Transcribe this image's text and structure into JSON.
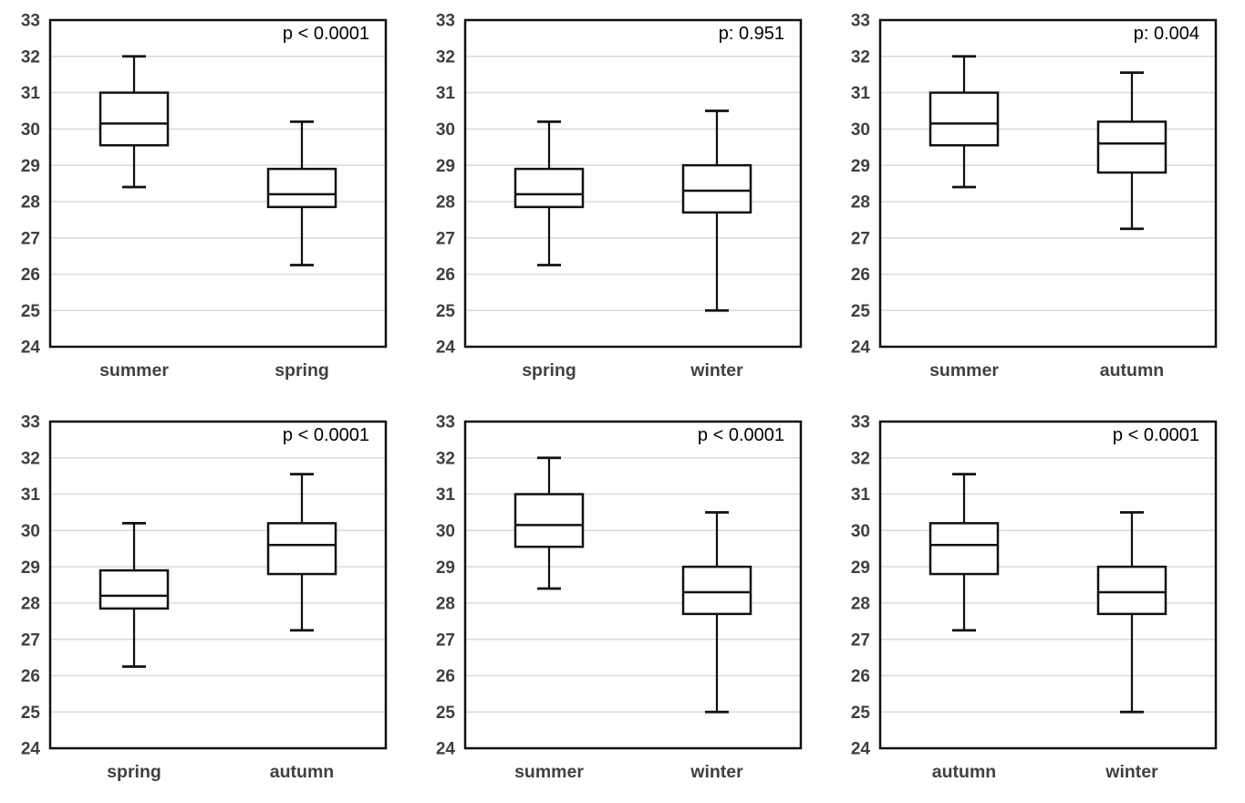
{
  "page": {
    "background": "#ffffff",
    "description": "Six pairwise seasonal box plot comparisons with p-values"
  },
  "styles": {
    "grid_color": "#d9d9d9",
    "line_color": "#111111",
    "tick_label_color": "#404040",
    "category_label_color": "#404040",
    "p_label_color": "#000000",
    "box_fill": "#ffffff"
  },
  "chart_data": [
    {
      "type": "boxplot",
      "p_label": "p < 0.0001",
      "ylim": [
        24,
        33
      ],
      "ytick_step": 1,
      "grid": true,
      "legend": "none",
      "categories": [
        "summer",
        "spring"
      ],
      "series": [
        {
          "name": "summer",
          "min": 28.4,
          "q1": 29.55,
          "median": 30.15,
          "q3": 31.0,
          "max": 32.0
        },
        {
          "name": "spring",
          "min": 26.25,
          "q1": 27.85,
          "median": 28.2,
          "q3": 28.9,
          "max": 30.2
        }
      ]
    },
    {
      "type": "boxplot",
      "p_label": "p: 0.951",
      "ylim": [
        24,
        33
      ],
      "ytick_step": 1,
      "grid": true,
      "legend": "none",
      "categories": [
        "spring",
        "winter"
      ],
      "series": [
        {
          "name": "spring",
          "min": 26.25,
          "q1": 27.85,
          "median": 28.2,
          "q3": 28.9,
          "max": 30.2
        },
        {
          "name": "winter",
          "min": 25.0,
          "q1": 27.7,
          "median": 28.3,
          "q3": 29.0,
          "max": 30.5
        }
      ]
    },
    {
      "type": "boxplot",
      "p_label": "p: 0.004",
      "ylim": [
        24,
        33
      ],
      "ytick_step": 1,
      "grid": true,
      "legend": "none",
      "categories": [
        "summer",
        "autumn"
      ],
      "series": [
        {
          "name": "summer",
          "min": 28.4,
          "q1": 29.55,
          "median": 30.15,
          "q3": 31.0,
          "max": 32.0
        },
        {
          "name": "autumn",
          "min": 27.25,
          "q1": 28.8,
          "median": 29.6,
          "q3": 30.2,
          "max": 31.55
        }
      ]
    },
    {
      "type": "boxplot",
      "p_label": "p < 0.0001",
      "ylim": [
        24,
        33
      ],
      "ytick_step": 1,
      "grid": true,
      "legend": "none",
      "categories": [
        "spring",
        "autumn"
      ],
      "series": [
        {
          "name": "spring",
          "min": 26.25,
          "q1": 27.85,
          "median": 28.2,
          "q3": 28.9,
          "max": 30.2
        },
        {
          "name": "autumn",
          "min": 27.25,
          "q1": 28.8,
          "median": 29.6,
          "q3": 30.2,
          "max": 31.55
        }
      ]
    },
    {
      "type": "boxplot",
      "p_label": "p < 0.0001",
      "ylim": [
        24,
        33
      ],
      "ytick_step": 1,
      "grid": true,
      "legend": "none",
      "categories": [
        "summer",
        "winter"
      ],
      "series": [
        {
          "name": "summer",
          "min": 28.4,
          "q1": 29.55,
          "median": 30.15,
          "q3": 31.0,
          "max": 32.0
        },
        {
          "name": "winter",
          "min": 25.0,
          "q1": 27.7,
          "median": 28.3,
          "q3": 29.0,
          "max": 30.5
        }
      ]
    },
    {
      "type": "boxplot",
      "p_label": "p < 0.0001",
      "ylim": [
        24,
        33
      ],
      "ytick_step": 1,
      "grid": true,
      "legend": "none",
      "categories": [
        "autumn",
        "winter"
      ],
      "series": [
        {
          "name": "autumn",
          "min": 27.25,
          "q1": 28.8,
          "median": 29.6,
          "q3": 30.2,
          "max": 31.55
        },
        {
          "name": "winter",
          "min": 25.0,
          "q1": 27.7,
          "median": 28.3,
          "q3": 29.0,
          "max": 30.5
        }
      ]
    }
  ]
}
